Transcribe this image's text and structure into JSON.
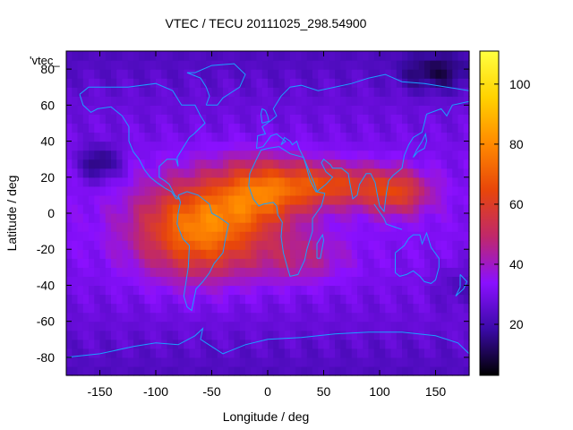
{
  "chart_data": {
    "type": "heatmap",
    "title": "VTEC / TECU 20111025_298.54900",
    "xlabel": "Longitude / deg",
    "ylabel": "Latitude / deg",
    "corner_label": "'vtec_",
    "xlim": [
      -180,
      180
    ],
    "ylim": [
      -90,
      90
    ],
    "xticks": [
      -150,
      -100,
      -50,
      0,
      50,
      100,
      150
    ],
    "yticks": [
      -80,
      -60,
      -40,
      -20,
      0,
      20,
      40,
      60,
      80
    ],
    "colorbar": {
      "range": [
        3,
        111
      ],
      "ticks": [
        20,
        40,
        60,
        80,
        100
      ],
      "palette": [
        "#000000",
        "#3b0aa8",
        "#8a10ff",
        "#c0286a",
        "#e8460a",
        "#ff8a00",
        "#ffd200",
        "#ffff40"
      ]
    },
    "features": [
      {
        "lon": -70,
        "lat": -10,
        "value": 70
      },
      {
        "lon": -40,
        "lat": 10,
        "value": 72
      },
      {
        "lon": 20,
        "lat": 10,
        "value": 66
      },
      {
        "lon": 90,
        "lat": 12,
        "value": 62
      },
      {
        "lon": 120,
        "lat": 12,
        "value": 58
      },
      {
        "lon": -150,
        "lat": 28,
        "value": 8
      },
      {
        "lon": 150,
        "lat": 80,
        "value": 5
      }
    ],
    "coastline_color": "#1aa0ff"
  }
}
